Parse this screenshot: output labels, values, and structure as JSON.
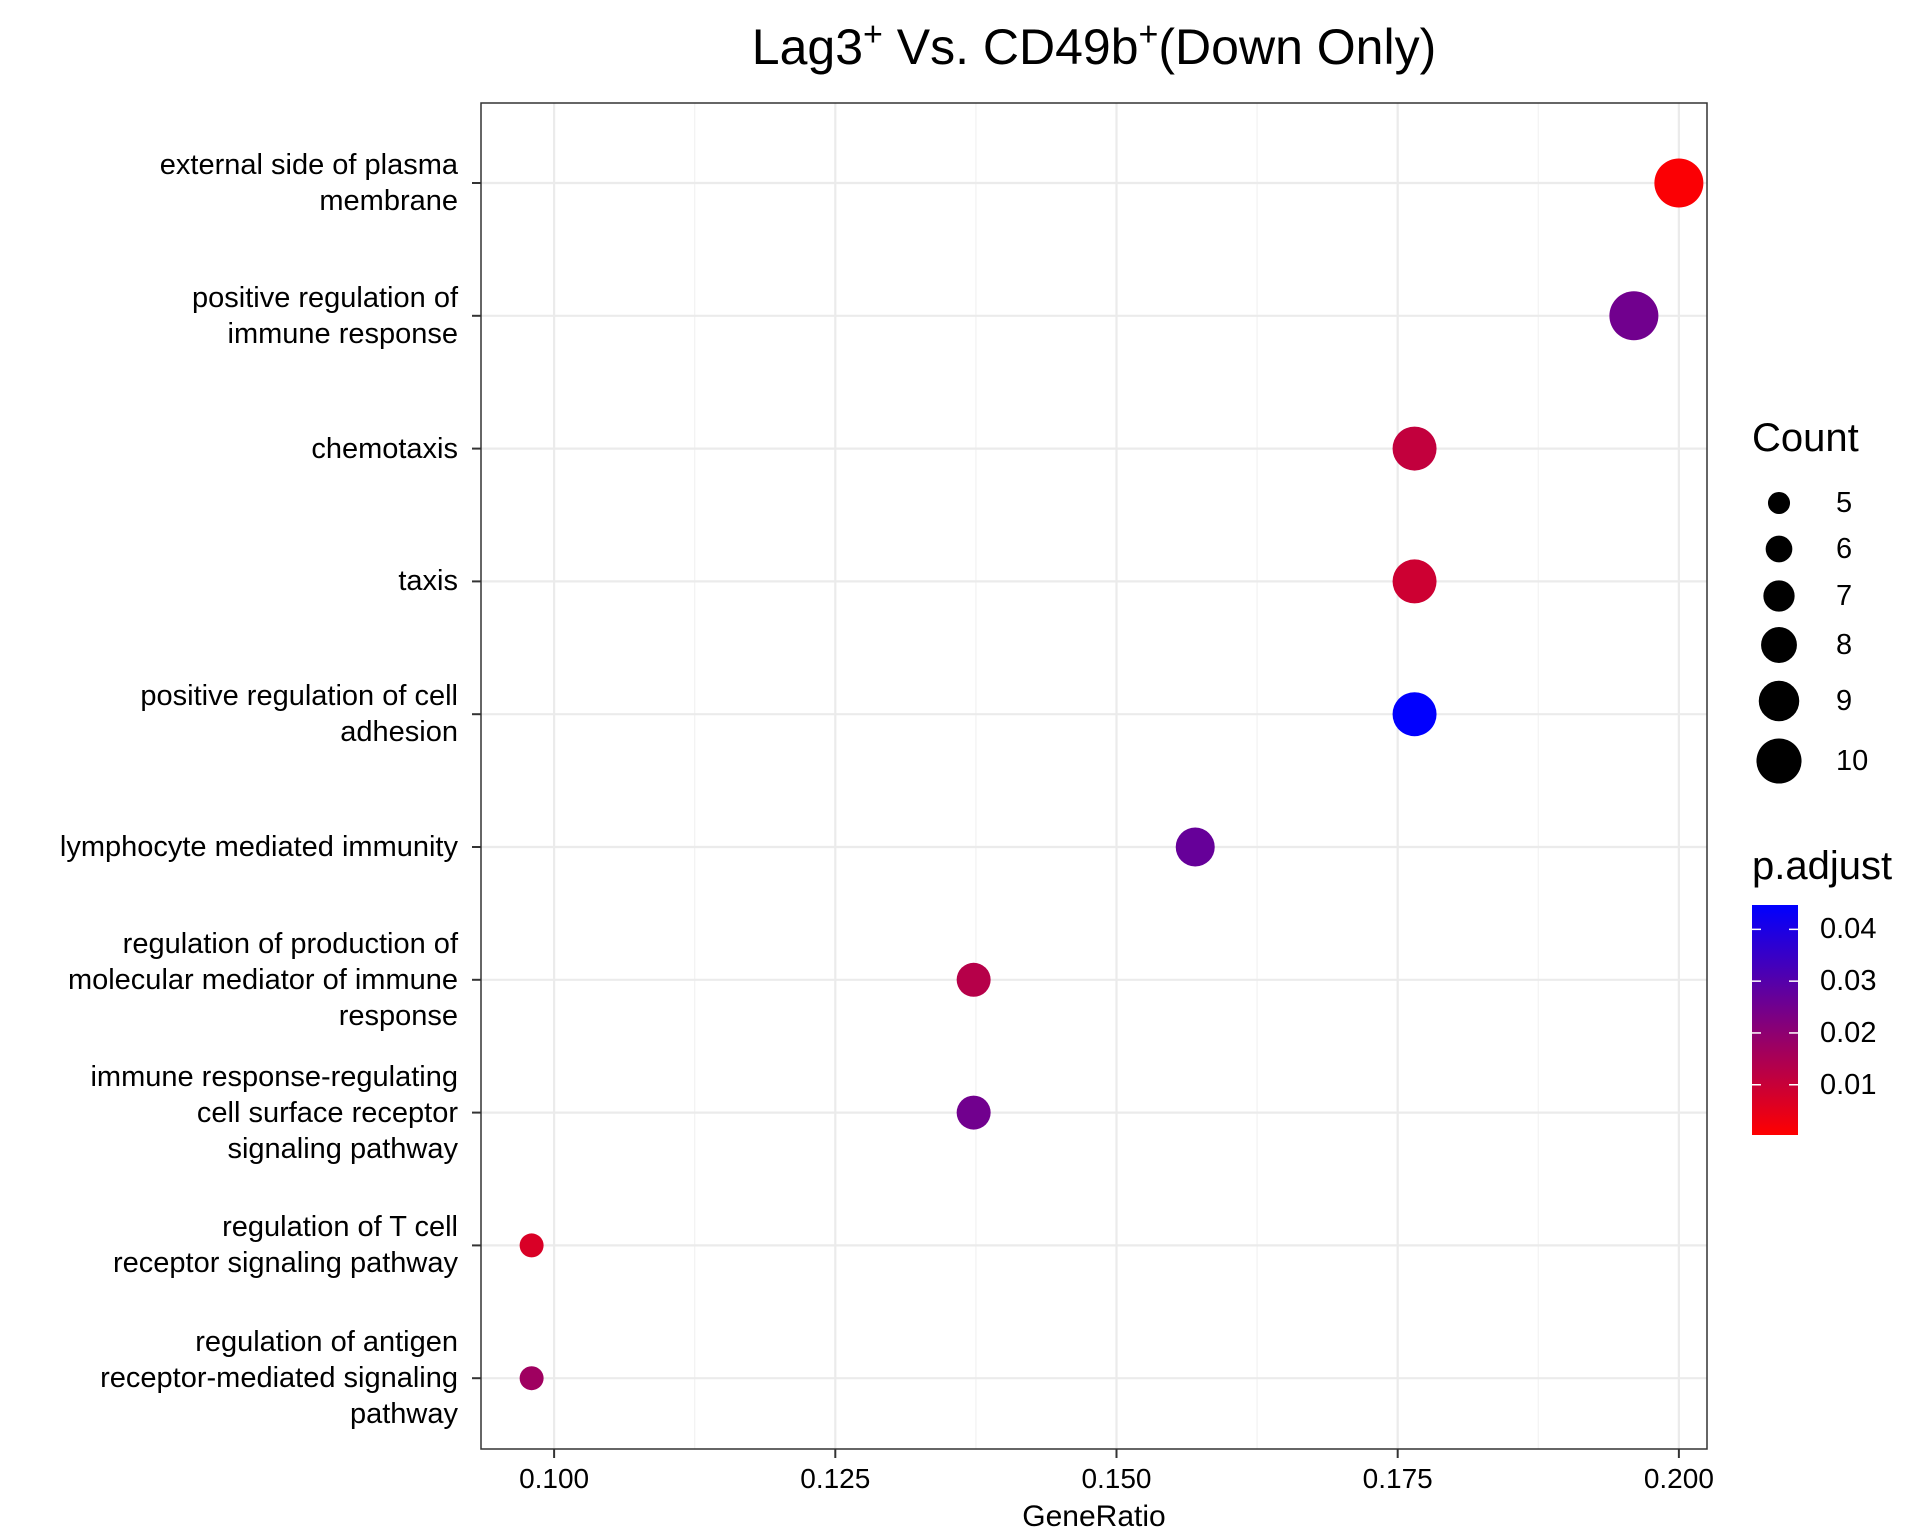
{
  "chart_data": {
    "type": "scatter",
    "title": {
      "prefix": "Lag3",
      "sup1": "+",
      "middle": " Vs. CD49b",
      "sup2": "+",
      "suffix": "(Down Only)"
    },
    "xlabel": "GeneRatio",
    "ylabel": "",
    "xlim": [
      0.0935,
      0.2025
    ],
    "x_ticks": [
      {
        "value": 0.1,
        "label": "0.100"
      },
      {
        "value": 0.125,
        "label": "0.125"
      },
      {
        "value": 0.15,
        "label": "0.150"
      },
      {
        "value": 0.175,
        "label": "0.175"
      },
      {
        "value": 0.2,
        "label": "0.200"
      }
    ],
    "categories": [
      "external side of plasma\nmembrane",
      "positive regulation of\nimmune response",
      "chemotaxis",
      "taxis",
      "positive regulation of cell\nadhesion",
      "lymphocyte mediated immunity",
      "regulation of production of\nmolecular mediator of immune\nresponse",
      "immune response-regulating\ncell surface receptor\nsignaling pathway",
      "regulation of T cell\nreceptor signaling pathway",
      "regulation of antigen\nreceptor-mediated signaling\npathway"
    ],
    "points": [
      {
        "category_index": 0,
        "gene_ratio": 0.2,
        "count": 10,
        "p_adjust": 0.001
      },
      {
        "category_index": 1,
        "gene_ratio": 0.196,
        "count": 10,
        "p_adjust": 0.025
      },
      {
        "category_index": 2,
        "gene_ratio": 0.1765,
        "count": 9,
        "p_adjust": 0.011
      },
      {
        "category_index": 3,
        "gene_ratio": 0.1765,
        "count": 9,
        "p_adjust": 0.009
      },
      {
        "category_index": 4,
        "gene_ratio": 0.1765,
        "count": 9,
        "p_adjust": 0.0445
      },
      {
        "category_index": 5,
        "gene_ratio": 0.157,
        "count": 8,
        "p_adjust": 0.027
      },
      {
        "category_index": 6,
        "gene_ratio": 0.1373,
        "count": 7,
        "p_adjust": 0.013
      },
      {
        "category_index": 7,
        "gene_ratio": 0.1373,
        "count": 7,
        "p_adjust": 0.025
      },
      {
        "category_index": 8,
        "gene_ratio": 0.098,
        "count": 5,
        "p_adjust": 0.007
      },
      {
        "category_index": 9,
        "gene_ratio": 0.098,
        "count": 5,
        "p_adjust": 0.017
      }
    ],
    "size_legend": {
      "title": "Count",
      "entries": [
        {
          "label": "5",
          "count": 5
        },
        {
          "label": "6",
          "count": 6
        },
        {
          "label": "7",
          "count": 7
        },
        {
          "label": "8",
          "count": 8
        },
        {
          "label": "9",
          "count": 9
        },
        {
          "label": "10",
          "count": 10
        }
      ]
    },
    "color_legend": {
      "title": "p.adjust",
      "range": [
        0.0003,
        0.0447
      ],
      "low_color": "#FF0000",
      "high_color": "#0000FF",
      "ticks": [
        {
          "value": 0.01,
          "label": "0.01"
        },
        {
          "value": 0.02,
          "label": "0.02"
        },
        {
          "value": 0.03,
          "label": "0.03"
        },
        {
          "value": 0.04,
          "label": "0.04"
        }
      ]
    },
    "grid": true
  }
}
